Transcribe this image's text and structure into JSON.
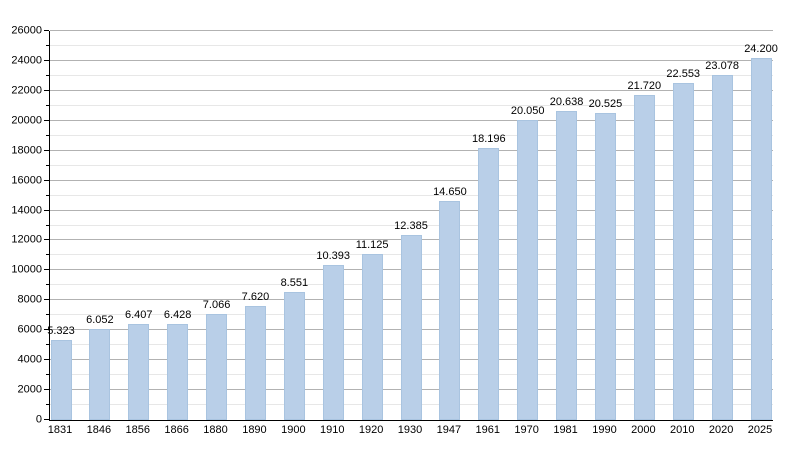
{
  "chart_data": {
    "type": "bar",
    "title": "",
    "categories": [
      "1831",
      "1846",
      "1856",
      "1866",
      "1880",
      "1890",
      "1900",
      "1910",
      "1920",
      "1930",
      "1947",
      "1961",
      "1970",
      "1981",
      "1990",
      "2000",
      "2010",
      "2020",
      "2025"
    ],
    "values": [
      5323,
      6052,
      6407,
      6428,
      7066,
      7620,
      8551,
      10393,
      11125,
      12385,
      14650,
      18196,
      20050,
      20638,
      20525,
      21720,
      22553,
      23078,
      24200
    ],
    "value_labels": [
      "5.323",
      "6.052",
      "6.407",
      "6.428",
      "7.066",
      "7.620",
      "8.551",
      "10.393",
      "11.125",
      "12.385",
      "14.650",
      "18.196",
      "20.050",
      "20.638",
      "20.525",
      "21.720",
      "22.553",
      "23.078",
      "24.200"
    ],
    "xlabel": "",
    "ylabel": "",
    "ylim": [
      0,
      26000
    ],
    "y_major_step": 2000,
    "y_minor_step": 1000,
    "y_tick_labels": [
      "0",
      "2000",
      "4000",
      "6000",
      "8000",
      "10000",
      "12000",
      "14000",
      "16000",
      "18000",
      "20000",
      "22000",
      "24000",
      "26000"
    ],
    "grid": "on",
    "legend": "none",
    "colors": {
      "bar_fill": "#b9cfe8",
      "bar_border": "#a9c4e0",
      "major_grid": "#b2b2b2",
      "minor_grid": "#e7e7e7",
      "axis": "#000000",
      "text": "#000000",
      "background": "#ffffff"
    }
  }
}
